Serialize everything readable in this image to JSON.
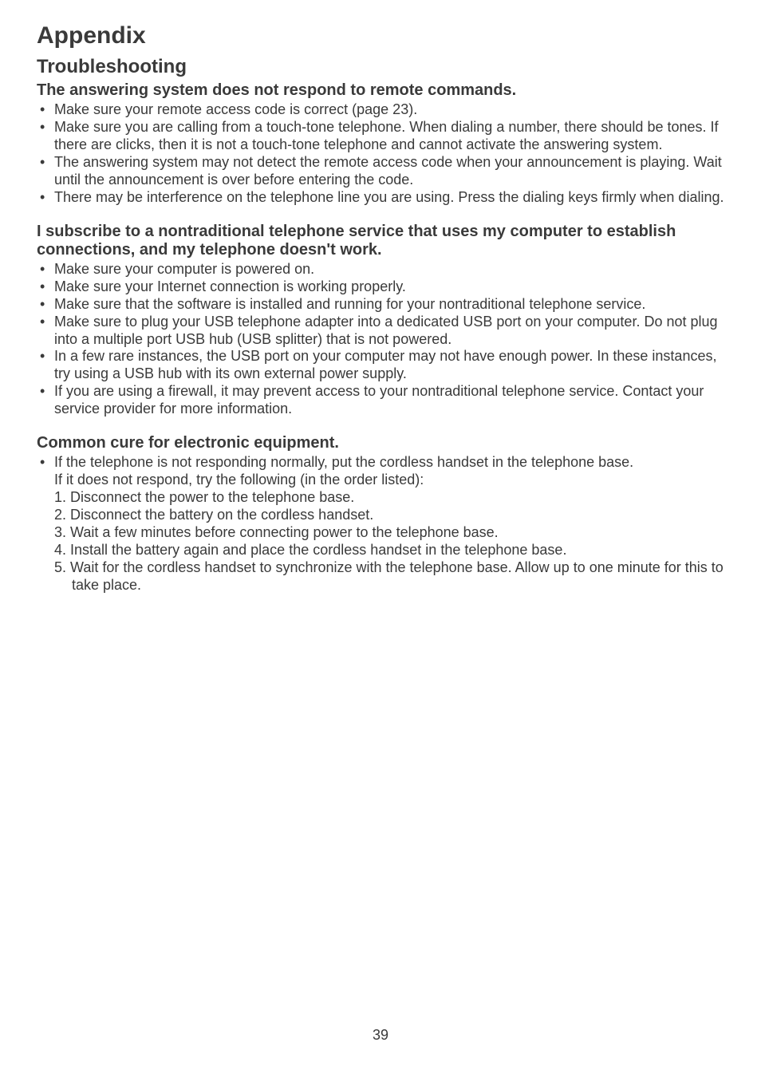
{
  "title": "Appendix",
  "subtitle": "Troubleshooting",
  "sections": [
    {
      "heading": "The answering system does not respond to remote commands.",
      "bullets": [
        "Make sure your remote access code is correct (page 23).",
        "Make sure you are calling from a touch-tone telephone. When dialing a number, there should be tones. If there are clicks, then it is not a touch-tone telephone and cannot activate the answering system.",
        "The answering system may not detect the remote access code when your announcement is playing. Wait until the announcement is over before entering the code.",
        "There may be interference on the telephone line you are using. Press the dialing keys firmly when dialing."
      ]
    },
    {
      "heading": "I subscribe to a nontraditional telephone service that uses my computer to establish connections, and my telephone doesn't work.",
      "bullets": [
        "Make sure your computer is powered on.",
        "Make sure your Internet connection is working properly.",
        "Make sure that the software is installed and running for your nontraditional telephone service.",
        "Make sure to plug your USB telephone adapter into a dedicated USB port on your computer. Do not plug into a multiple port USB hub (USB splitter) that is not powered.",
        "In a few rare instances, the USB port on your computer may not have enough power. In these instances, try using a USB hub with its own external power supply.",
        "If you are using a firewall, it may prevent access to your nontraditional telephone service. Contact your service provider for more information."
      ]
    },
    {
      "heading": "Common cure for electronic equipment.",
      "intro_bullet": "If the telephone is not responding normally, put the cordless handset in the telephone base.",
      "intro_line": "If it does not respond, try the following (in the order listed):",
      "ordered": [
        "1. Disconnect the power to the telephone base.",
        "2. Disconnect the battery on the cordless handset.",
        "3. Wait a few minutes before connecting power to the telephone base.",
        "4. Install the battery again and place the cordless handset in the telephone base.",
        "5. Wait for the cordless handset to synchronize with the telephone base. Allow up to one minute for this to take place."
      ]
    }
  ],
  "page_number": "39"
}
